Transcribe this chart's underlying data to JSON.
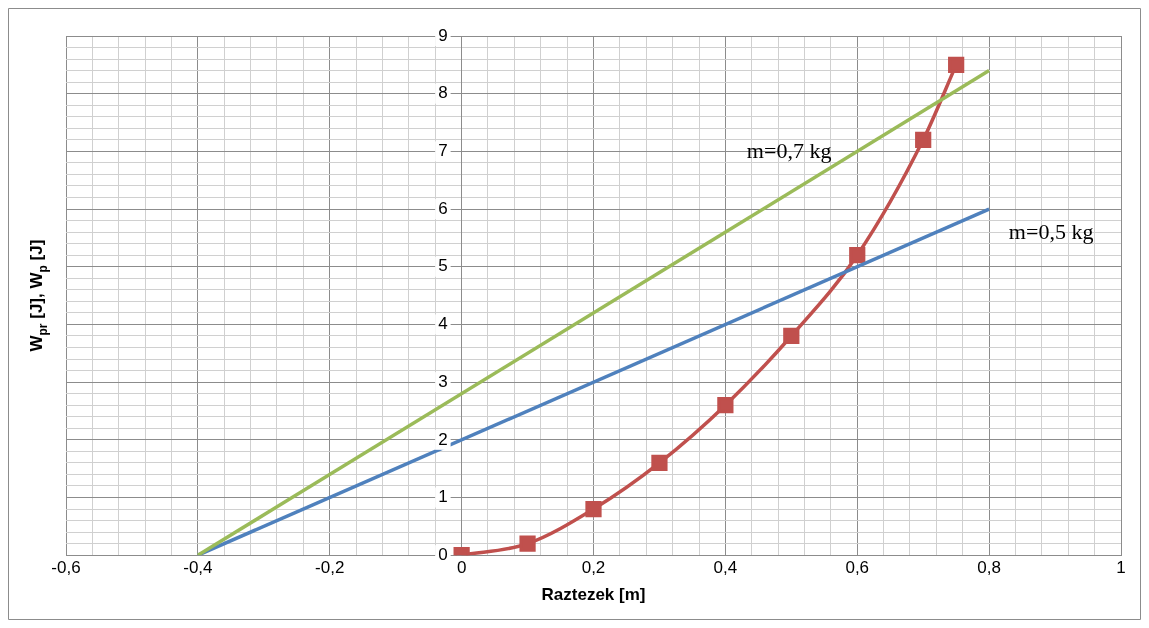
{
  "chart_data": {
    "type": "line",
    "xlabel": "Raztezek [m]",
    "ylabel": "W$_{pr}$ [J], W$_{p}$ [J]",
    "xlim": [
      -0.6,
      1
    ],
    "ylim": [
      0,
      9
    ],
    "xticks": [
      {
        "value": -0.6,
        "label": "-0,6"
      },
      {
        "value": -0.56,
        "label": null
      },
      {
        "value": -0.52,
        "label": null
      },
      {
        "value": -0.48,
        "label": null
      },
      {
        "value": -0.44,
        "label": null
      },
      {
        "value": -0.4,
        "label": "-0,4"
      },
      {
        "value": -0.36,
        "label": null
      },
      {
        "value": -0.32,
        "label": null
      },
      {
        "value": -0.28,
        "label": null
      },
      {
        "value": -0.24,
        "label": null
      },
      {
        "value": -0.2,
        "label": "-0,2"
      },
      {
        "value": -0.16,
        "label": null
      },
      {
        "value": -0.12,
        "label": null
      },
      {
        "value": -0.08,
        "label": null
      },
      {
        "value": -0.04,
        "label": null
      },
      0,
      {
        "value": 0.04,
        "label": null
      },
      {
        "value": 0.08,
        "label": null
      },
      {
        "value": 0.12,
        "label": null
      },
      {
        "value": 0.16,
        "label": null
      },
      {
        "value": 0.2,
        "label": "0,2"
      },
      {
        "value": 0.24,
        "label": null
      },
      {
        "value": 0.28,
        "label": null
      },
      {
        "value": 0.32,
        "label": null
      },
      {
        "value": 0.36,
        "label": null
      },
      {
        "value": 0.4,
        "label": "0,4"
      },
      {
        "value": 0.44,
        "label": null
      },
      {
        "value": 0.48,
        "label": null
      },
      {
        "value": 0.52,
        "label": null
      },
      {
        "value": 0.56,
        "label": null
      },
      {
        "value": 0.6,
        "label": "0,6"
      },
      {
        "value": 0.64,
        "label": null
      },
      {
        "value": 0.68,
        "label": null
      },
      {
        "value": 0.72,
        "label": null
      },
      {
        "value": 0.76,
        "label": null
      },
      {
        "value": 0.8,
        "label": "0,8"
      },
      {
        "value": 0.84,
        "label": null
      },
      {
        "value": 0.88,
        "label": null
      },
      {
        "value": 0.92,
        "label": null
      },
      {
        "value": 0.96,
        "label": null
      },
      1
    ],
    "yticks": [
      0,
      {
        "value": 0.2,
        "label": null
      },
      {
        "value": 0.4,
        "label": null
      },
      {
        "value": 0.6,
        "label": null
      },
      {
        "value": 0.8,
        "label": null
      },
      1,
      {
        "value": 1.2,
        "label": null
      },
      {
        "value": 1.4,
        "label": null
      },
      {
        "value": 1.6,
        "label": null
      },
      {
        "value": 1.8,
        "label": null
      },
      2,
      {
        "value": 2.2,
        "label": null
      },
      {
        "value": 2.4,
        "label": null
      },
      {
        "value": 2.6,
        "label": null
      },
      {
        "value": 2.8,
        "label": null
      },
      3,
      {
        "value": 3.2,
        "label": null
      },
      {
        "value": 3.4,
        "label": null
      },
      {
        "value": 3.6,
        "label": null
      },
      {
        "value": 3.8,
        "label": null
      },
      4,
      {
        "value": 4.2,
        "label": null
      },
      {
        "value": 4.4,
        "label": null
      },
      {
        "value": 4.6,
        "label": null
      },
      {
        "value": 4.8,
        "label": null
      },
      5,
      {
        "value": 5.2,
        "label": null
      },
      {
        "value": 5.4,
        "label": null
      },
      {
        "value": 5.6,
        "label": null
      },
      {
        "value": 5.8,
        "label": null
      },
      6,
      {
        "value": 6.2,
        "label": null
      },
      {
        "value": 6.4,
        "label": null
      },
      {
        "value": 6.6,
        "label": null
      },
      {
        "value": 6.8,
        "label": null
      },
      7,
      {
        "value": 7.2,
        "label": null
      },
      {
        "value": 7.4,
        "label": null
      },
      {
        "value": 7.6,
        "label": null
      },
      {
        "value": 7.8,
        "label": null
      },
      8,
      {
        "value": 8.2,
        "label": null
      },
      {
        "value": 8.4,
        "label": null
      },
      {
        "value": 8.6,
        "label": null
      },
      {
        "value": 8.8,
        "label": null
      },
      9
    ],
    "grid": true,
    "legend": false,
    "series": [
      {
        "type": "line",
        "name": "m=0,7 kg",
        "color": "#9bbb59",
        "x": [
          -0.4,
          0.8
        ],
        "values": [
          0,
          8.4
        ],
        "marker": "none",
        "line_style": "solid"
      },
      {
        "type": "line",
        "name": "m=0,5 kg",
        "color": "#4f81bd",
        "x": [
          -0.4,
          0.8
        ],
        "values": [
          0,
          6
        ],
        "marker": "none",
        "line_style": "solid"
      },
      {
        "type": "line",
        "color": "#c0504d",
        "x": [
          0,
          0.1,
          0.2,
          0.3,
          0.4,
          0.5,
          0.6,
          0.7,
          0.75
        ],
        "values": [
          0,
          0.2,
          0.8,
          1.6,
          2.6,
          3.8,
          5.2,
          7.2,
          8.5
        ],
        "marker": "square",
        "line_style": "solid"
      }
    ]
  }
}
